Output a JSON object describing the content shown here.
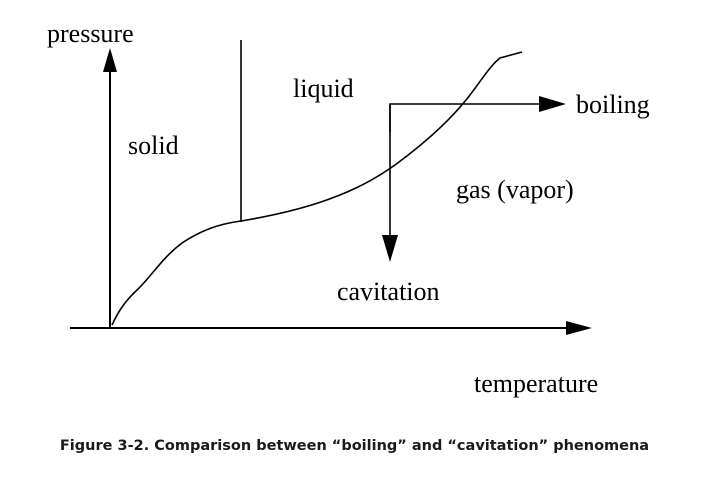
{
  "diagram": {
    "axes": {
      "y_label": "pressure",
      "x_label": "temperature"
    },
    "regions": {
      "solid": "solid",
      "liquid": "liquid",
      "gas": "gas (vapor)"
    },
    "processes": {
      "boiling": "boiling",
      "cavitation": "cavitation"
    },
    "line_color": "#000000"
  },
  "caption": "Figure 3-2. Comparison between “boiling” and “cavitation” phenomena"
}
